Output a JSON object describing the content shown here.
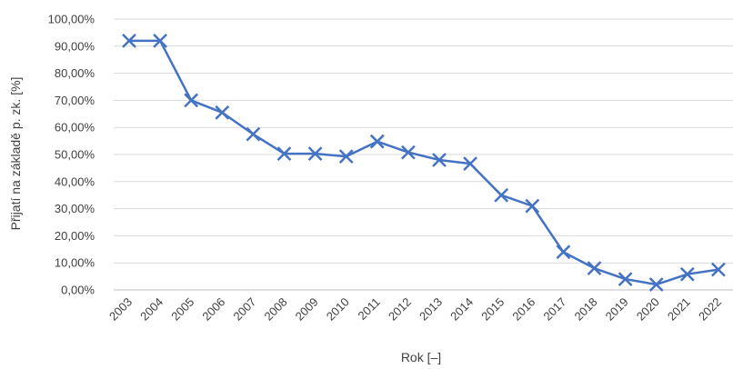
{
  "chart_data": {
    "type": "line",
    "title": "",
    "xlabel": "Rok [–]",
    "ylabel": "Přijatí na základě p. zk. [%]",
    "ylim": [
      0,
      100
    ],
    "y_ticks": [
      "0,00%",
      "10,00%",
      "20,00%",
      "30,00%",
      "40,00%",
      "50,00%",
      "60,00%",
      "70,00%",
      "80,00%",
      "90,00%",
      "100,00%"
    ],
    "grid": true,
    "legend": "none",
    "categories": [
      "2003",
      "2004",
      "2005",
      "2006",
      "2007",
      "2008",
      "2009",
      "2010",
      "2011",
      "2012",
      "2013",
      "2014",
      "2015",
      "2016",
      "2017",
      "2018",
      "2019",
      "2020",
      "2021",
      "2022"
    ],
    "series": [
      {
        "color": "#4472c4",
        "marker": "x",
        "values": [
          92.0,
          92.0,
          70.0,
          65.5,
          57.5,
          50.3,
          50.3,
          49.3,
          54.8,
          50.8,
          48.0,
          46.6,
          35.0,
          31.0,
          14.0,
          8.0,
          4.0,
          2.0,
          5.8,
          7.5
        ]
      }
    ]
  }
}
